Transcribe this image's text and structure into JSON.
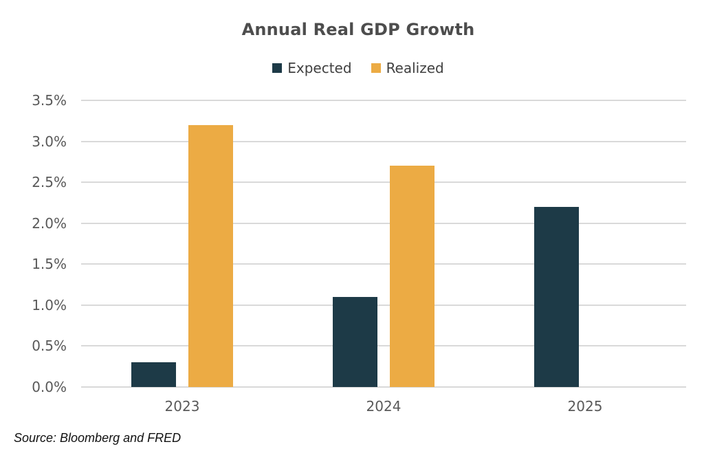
{
  "source": "Source: Bloomberg and FRED",
  "colors": {
    "expected_series": "#1d3a47",
    "realized_series": "#ecab44",
    "gridline": "#d9d9d9",
    "axis_text": "#595959",
    "title_text": "#4d4d4d"
  },
  "chart_data": {
    "type": "bar",
    "title": "Annual Real GDP Growth",
    "categories": [
      "2023",
      "2024",
      "2025"
    ],
    "series": [
      {
        "name": "Expected",
        "color": "#1d3a47",
        "values": [
          0.3,
          1.1,
          2.2
        ]
      },
      {
        "name": "Realized",
        "color": "#ecab44",
        "values": [
          3.2,
          2.7,
          null
        ]
      }
    ],
    "xlabel": "",
    "ylabel": "",
    "ylim": [
      0,
      3.5
    ],
    "ytick_step": 0.5,
    "ytick_labels": [
      "0.0%",
      "0.5%",
      "1.0%",
      "1.5%",
      "2.0%",
      "2.5%",
      "3.0%",
      "3.5%"
    ],
    "unit": "%",
    "grid": true,
    "legend_position": "top"
  }
}
